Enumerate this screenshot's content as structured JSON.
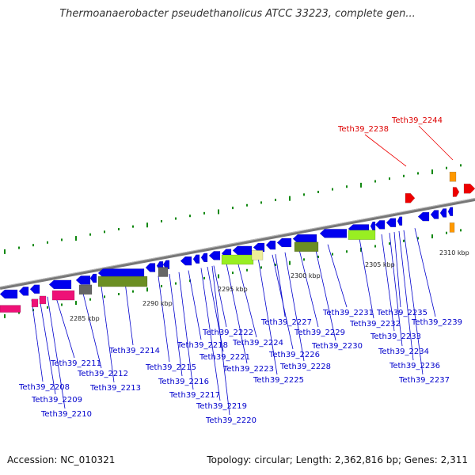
{
  "title": "Thermoanaerobacter pseudethanolicus ATCC 33223, complete gen...",
  "footer": {
    "accession": "Accession: NC_010321",
    "summary": "Topology: circular; Length: 2,362,816 bp; Genes: 2,311"
  },
  "colors": {
    "gene_forward": "#0000ee",
    "highlight": "#ee0000",
    "orange": "#ff9900",
    "pink": "#ee1177",
    "olive": "#6b8e23",
    "lime": "#99ee22",
    "grey": "#666666",
    "label": "#0000cc",
    "backbone": "#888888",
    "ticks": "#118811"
  },
  "kbp_labels": [
    "2285 kbp",
    "2290 kbp",
    "2295 kbp",
    "2300 kbp",
    "2305 kbp",
    "2310 kbp"
  ],
  "gene_labels": [
    "Teth39_2208",
    "Teth39_2209",
    "Teth39_2210",
    "Teth39_2211",
    "Teth39_2212",
    "Teth39_2213",
    "Teth39_2214",
    "Teth39_2215",
    "Teth39_2216",
    "Teth39_2217",
    "Teth39_2218",
    "Teth39_2219",
    "Teth39_2220",
    "Teth39_2221",
    "Teth39_2222",
    "Teth39_2223",
    "Teth39_2224",
    "Teth39_2225",
    "Teth39_2226",
    "Teth39_2227",
    "Teth39_2228",
    "Teth39_2229",
    "Teth39_2230",
    "Teth39_2231",
    "Teth39_2232",
    "Teth39_2233",
    "Teth39_2234",
    "Teth39_2235",
    "Teth39_2236",
    "Teth39_2237",
    "Teth39_2239"
  ],
  "highlight_labels": [
    "Teth39_2238",
    "Teth39_2244"
  ]
}
